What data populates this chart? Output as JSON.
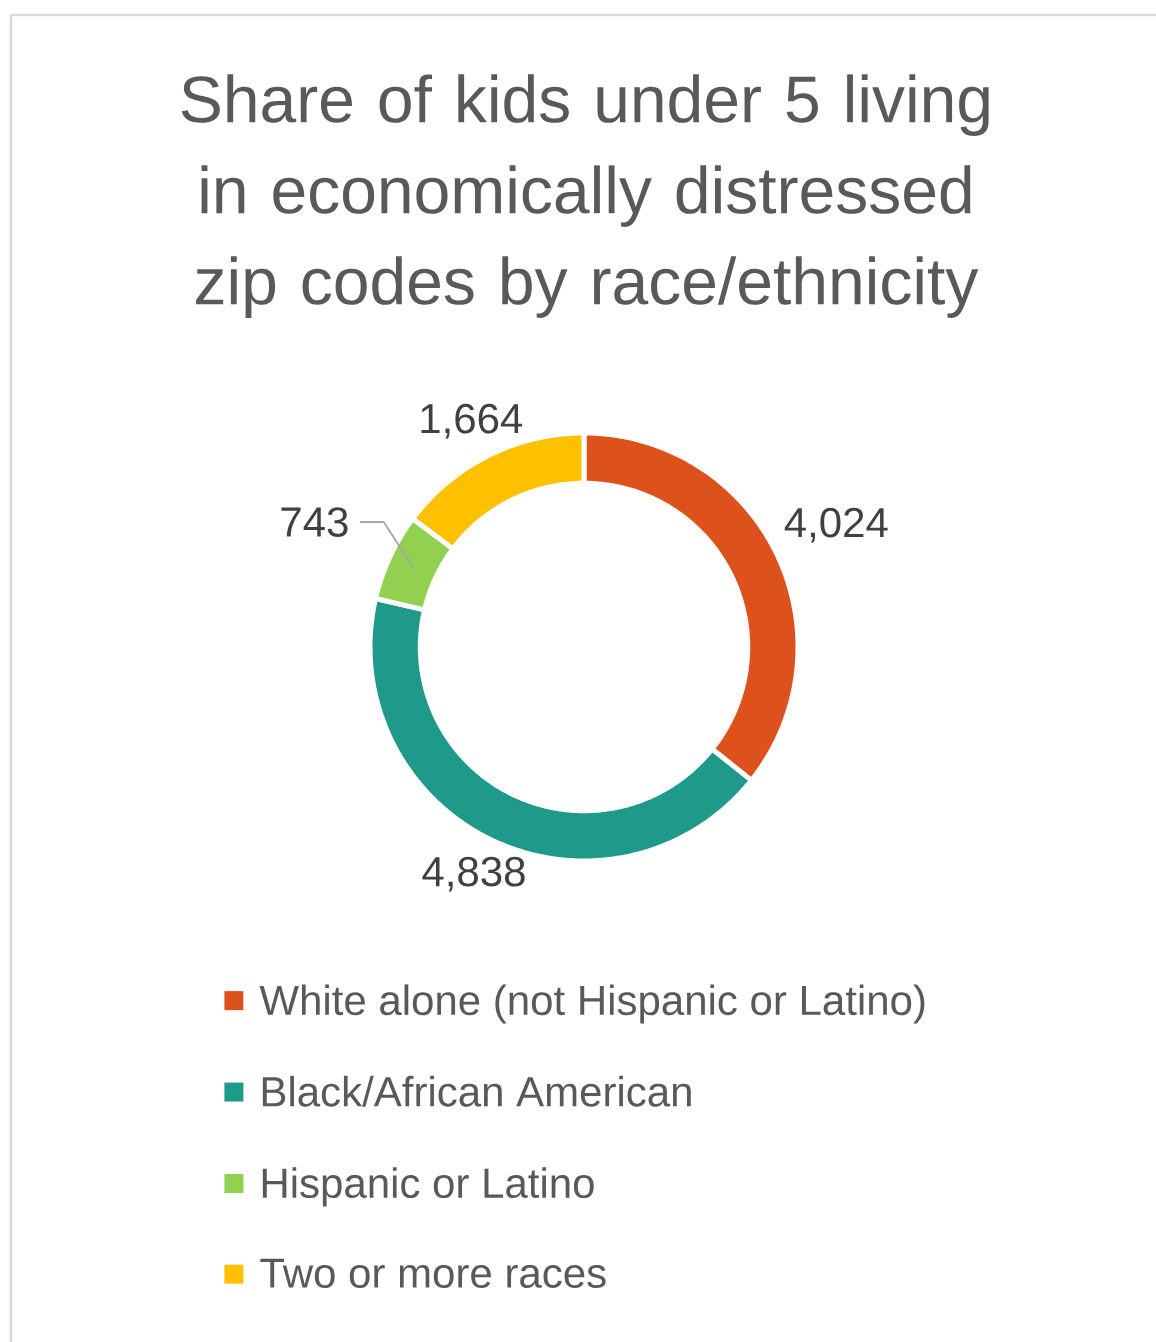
{
  "chart_data": {
    "type": "donut",
    "title": "Share of kids under 5 living in economically distressed zip codes by race/ethnicity",
    "categories": [
      "White alone (not Hispanic or Latino)",
      "Black/African American",
      "Hispanic or Latino",
      "Two or more races"
    ],
    "values": [
      4024,
      4838,
      743,
      1664
    ],
    "colors": [
      "#dd511d",
      "#1f9a8a",
      "#92d050",
      "#ffc000"
    ],
    "value_labels": [
      "4,024",
      "4,838",
      "743",
      "1,664"
    ],
    "legend": "bottom"
  }
}
